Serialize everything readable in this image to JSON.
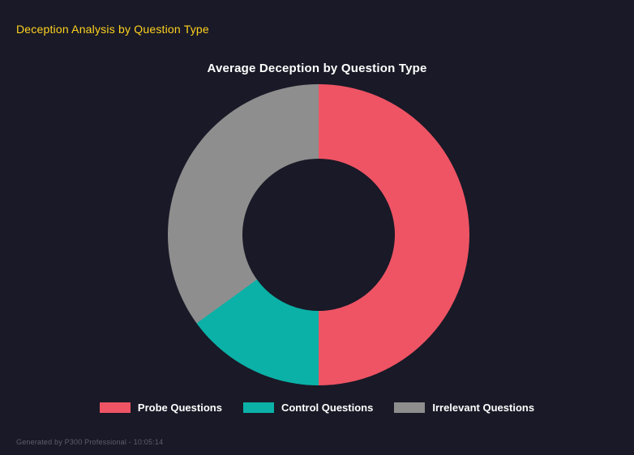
{
  "header": {
    "title": "Deception Analysis by Question Type"
  },
  "chart": {
    "title": "Average Deception by Question Type"
  },
  "chart_data": {
    "type": "pie",
    "subtype": "donut",
    "title": "Average Deception by Question Type",
    "categories": [
      "Probe Questions",
      "Control Questions",
      "Irrelevant Questions"
    ],
    "values": [
      50,
      15,
      35
    ],
    "units": "percent_of_donut",
    "colors": [
      "#ef5464",
      "#0bb1a7",
      "#8e8e8e"
    ],
    "start_angle_deg": 0,
    "direction": "clockwise",
    "legend_position": "bottom",
    "inner_radius_ratio": 0.51
  },
  "footer": {
    "text": "Generated by P300 Professional - 10:05:14"
  },
  "theme": {
    "background": "#191927",
    "accent_yellow": "#ffd21f",
    "text_white": "#ffffff",
    "footer_gray": "#5e5e6e"
  }
}
